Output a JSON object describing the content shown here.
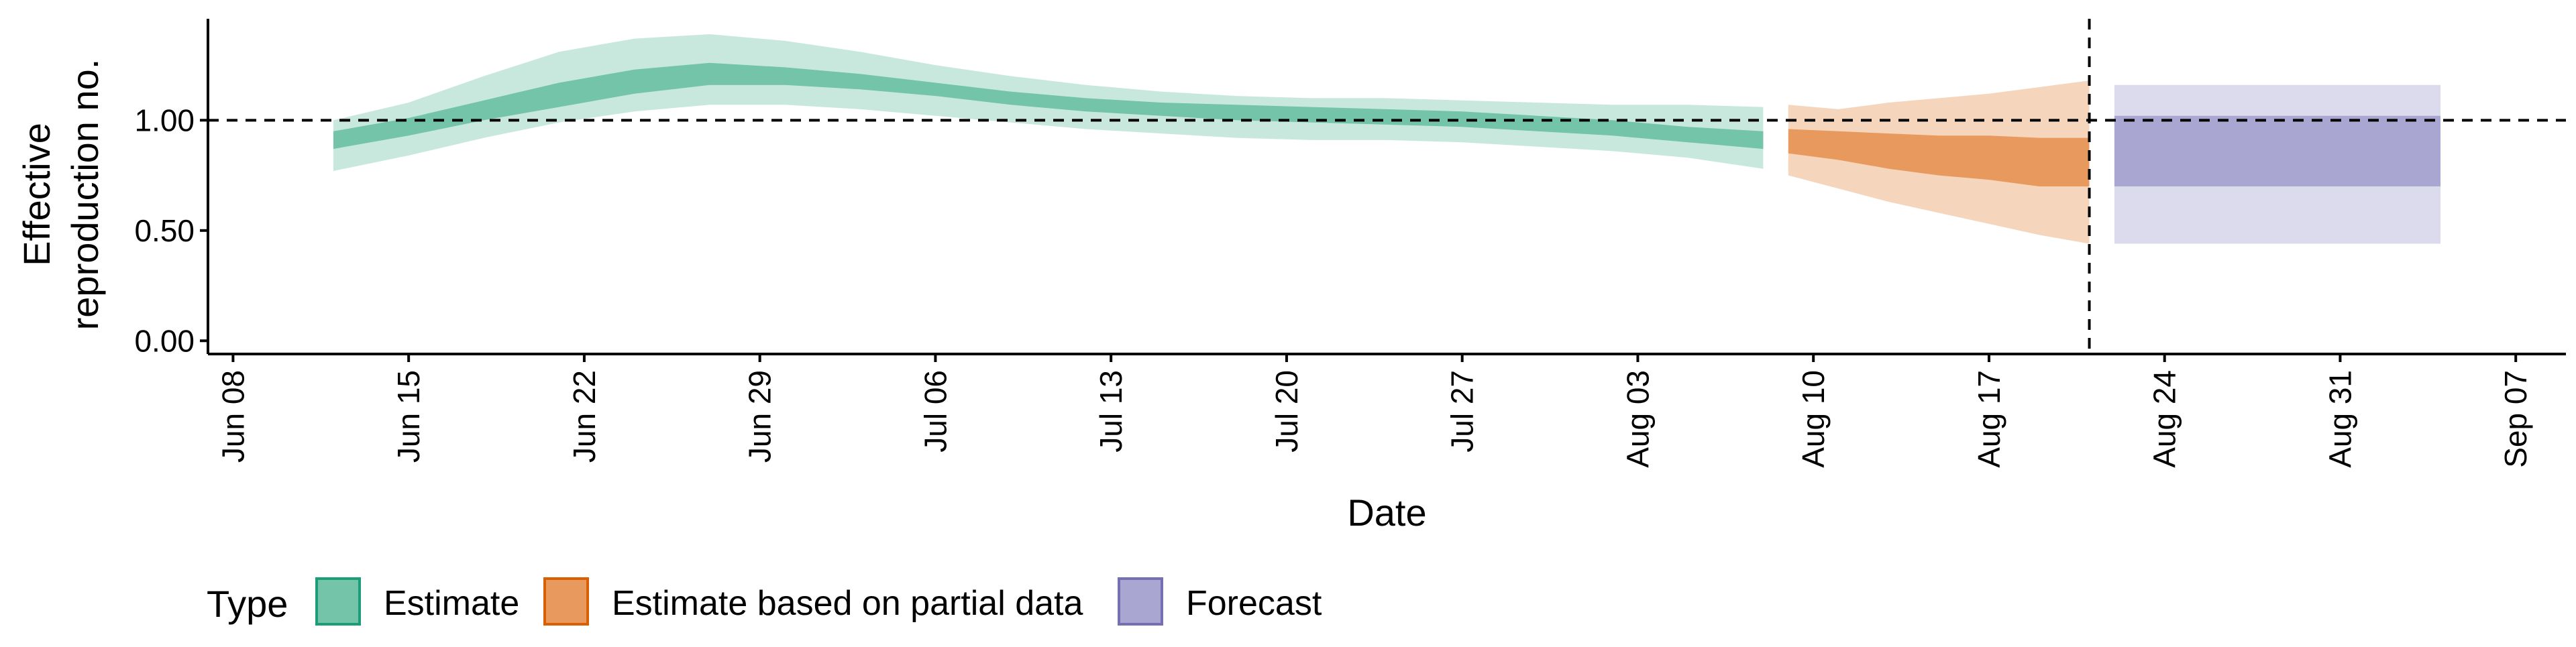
{
  "chart_data": {
    "type": "area",
    "title": "",
    "xlabel": "Date",
    "ylabel_lines": [
      "Effective",
      "reproduction no."
    ],
    "x_ticks": [
      "Jun 08",
      "Jun 15",
      "Jun 22",
      "Jun 29",
      "Jul 06",
      "Jul 13",
      "Jul 20",
      "Jul 27",
      "Aug 03",
      "Aug 10",
      "Aug 17",
      "Aug 24",
      "Aug 31",
      "Sep 07"
    ],
    "y_ticks": [
      "0.00",
      "0.50",
      "1.00"
    ],
    "ylim": [
      -0.06,
      1.46
    ],
    "xlim": [
      "2020-06-07",
      "2020-09-09"
    ],
    "grid": false,
    "reference_hline": 1.0,
    "reference_vline": "2020-08-21",
    "legend": {
      "title": "Type",
      "position": "bottom-left",
      "items": [
        {
          "label": "Estimate",
          "fill": "#73c4a8",
          "stroke": "#1b9e77"
        },
        {
          "label": "Estimate based on partial data",
          "fill": "#e89a5e",
          "stroke": "#d95f02"
        },
        {
          "label": "Forecast",
          "fill": "#a9a6d1",
          "stroke": "#7570b3"
        }
      ]
    },
    "series": [
      {
        "name": "Estimate",
        "colors": {
          "inner": "#73c4a8",
          "outer": "#c8e8de"
        },
        "x": [
          "2020-06-12",
          "2020-06-15",
          "2020-06-18",
          "2020-06-21",
          "2020-06-24",
          "2020-06-27",
          "2020-06-30",
          "2020-07-03",
          "2020-07-06",
          "2020-07-09",
          "2020-07-12",
          "2020-07-15",
          "2020-07-18",
          "2020-07-21",
          "2020-07-24",
          "2020-07-27",
          "2020-07-30",
          "2020-08-02",
          "2020-08-05",
          "2020-08-08"
        ],
        "lower90": [
          0.77,
          0.84,
          0.92,
          0.99,
          1.04,
          1.07,
          1.07,
          1.05,
          1.02,
          0.99,
          0.96,
          0.94,
          0.92,
          0.91,
          0.91,
          0.9,
          0.88,
          0.86,
          0.83,
          0.78
        ],
        "lower50": [
          0.87,
          0.93,
          1.0,
          1.06,
          1.12,
          1.16,
          1.16,
          1.14,
          1.11,
          1.07,
          1.04,
          1.02,
          1.0,
          0.99,
          0.98,
          0.97,
          0.95,
          0.93,
          0.9,
          0.87
        ],
        "upper50": [
          0.95,
          1.01,
          1.09,
          1.17,
          1.23,
          1.26,
          1.24,
          1.21,
          1.17,
          1.13,
          1.1,
          1.08,
          1.07,
          1.06,
          1.05,
          1.04,
          1.02,
          1.0,
          0.97,
          0.95
        ],
        "upper90": [
          1.0,
          1.08,
          1.2,
          1.31,
          1.37,
          1.39,
          1.36,
          1.31,
          1.25,
          1.2,
          1.16,
          1.13,
          1.11,
          1.1,
          1.1,
          1.09,
          1.08,
          1.07,
          1.07,
          1.06
        ]
      },
      {
        "name": "Estimate based on partial data",
        "colors": {
          "inner": "#e89a5e",
          "outer": "#f6d5bd"
        },
        "x": [
          "2020-08-09",
          "2020-08-11",
          "2020-08-13",
          "2020-08-15",
          "2020-08-17",
          "2020-08-19",
          "2020-08-21"
        ],
        "lower90": [
          0.75,
          0.69,
          0.63,
          0.58,
          0.53,
          0.48,
          0.44
        ],
        "lower50": [
          0.85,
          0.82,
          0.78,
          0.75,
          0.73,
          0.7,
          0.7
        ],
        "upper50": [
          0.96,
          0.95,
          0.94,
          0.93,
          0.93,
          0.92,
          0.92
        ],
        "upper90": [
          1.07,
          1.05,
          1.08,
          1.1,
          1.12,
          1.15,
          1.18
        ]
      },
      {
        "name": "Forecast",
        "colors": {
          "inner": "#a9a6d1",
          "outer": "#dcdbee"
        },
        "x": [
          "2020-08-22",
          "2020-09-04"
        ],
        "lower90": [
          0.44,
          0.44
        ],
        "lower50": [
          0.7,
          0.7
        ],
        "upper50": [
          1.02,
          1.02
        ],
        "upper90": [
          1.16,
          1.16
        ]
      }
    ]
  }
}
